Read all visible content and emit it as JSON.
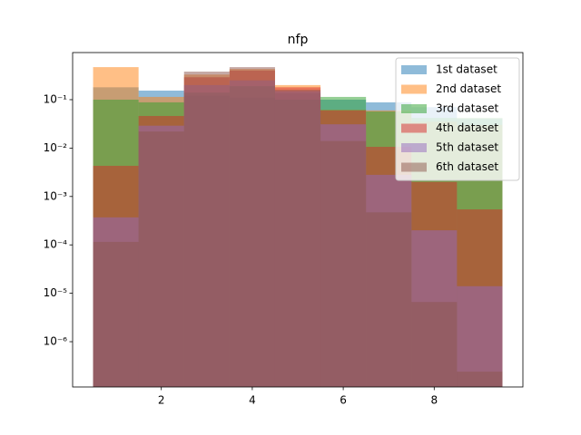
{
  "chart_data": {
    "type": "histogram",
    "title": "nfp",
    "bins": [
      0.5,
      1.5,
      2.5,
      3.5,
      4.5,
      5.5,
      6.5,
      7.5,
      8.5,
      9.5
    ],
    "series": [
      {
        "name": "1st dataset",
        "color": "#1f77b4",
        "values": [
          0.18,
          0.154,
          0.12,
          0.11,
          0.135,
          0.1,
          0.088,
          0.07,
          0.04
        ]
      },
      {
        "name": "2nd dataset",
        "color": "#ff7f0e",
        "values": [
          0.47,
          0.114,
          0.33,
          0.43,
          0.2,
          0.062,
          0.06,
          0.035,
          0.03
        ]
      },
      {
        "name": "3rd dataset",
        "color": "#2ca02c",
        "values": [
          0.1,
          0.088,
          0.14,
          0.19,
          0.1,
          0.114,
          0.057,
          0.042,
          0.042
        ]
      },
      {
        "name": "4th dataset",
        "color": "#d62728",
        "values": [
          0.0043,
          0.046,
          0.29,
          0.4,
          0.18,
          0.06,
          0.0106,
          0.002,
          0.00054
        ]
      },
      {
        "name": "5th dataset",
        "color": "#9467bd",
        "values": [
          0.00037,
          0.029,
          0.2,
          0.25,
          0.15,
          0.031,
          0.0028,
          0.0002,
          1.4e-05
        ]
      },
      {
        "name": "6th dataset",
        "color": "#8c564b",
        "values": [
          0.000115,
          0.022,
          0.38,
          0.47,
          0.16,
          0.014,
          0.00047,
          6.6e-06,
          2.4e-07
        ]
      }
    ],
    "xlim": [
      0.05,
      9.95
    ],
    "xticks": [
      2,
      4,
      6,
      8
    ],
    "ylim": [
      1.16e-07,
      0.94
    ],
    "log_y": true,
    "yticks": [
      {
        "value": 1e-06,
        "label": "10⁻⁶"
      },
      {
        "value": 1e-05,
        "label": "10⁻⁵"
      },
      {
        "value": 0.0001,
        "label": "10⁻⁴"
      },
      {
        "value": 0.001,
        "label": "10⁻³"
      },
      {
        "value": 0.01,
        "label": "10⁻²"
      },
      {
        "value": 0.1,
        "label": "10⁻¹"
      }
    ],
    "legend": "upper right",
    "alpha": 0.5
  }
}
